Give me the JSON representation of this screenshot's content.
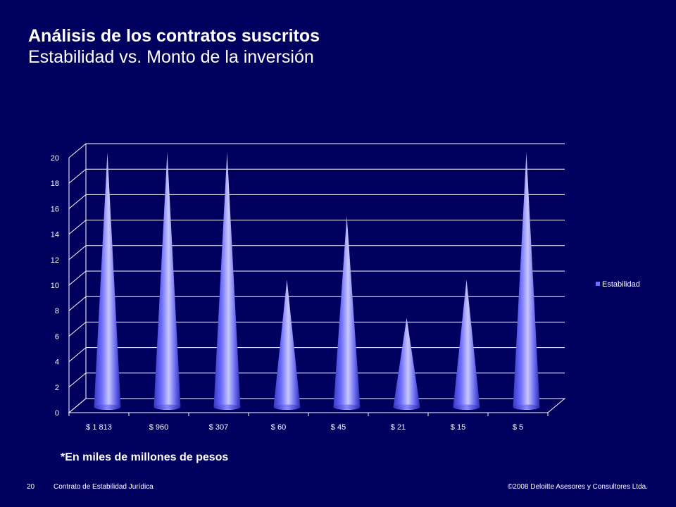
{
  "slide": {
    "title": "Análisis de los contratos suscritos",
    "subtitle": "Estabilidad vs. Monto de la inversión",
    "note": "*En miles de millones de pesos",
    "footer": {
      "page_number": "20",
      "document": "Contrato de Estabilidad Jurídica",
      "copyright": "©2008 Deloitte Asesores y Consultores Ltda."
    }
  },
  "chart_data": {
    "type": "bar",
    "shape": "cone-3d",
    "categories": [
      "$ 1 813",
      "$ 960",
      "$ 307",
      "$ 60",
      "$ 45",
      "$ 21",
      "$ 15",
      "$ 5"
    ],
    "series": [
      {
        "name": "Estabilidad",
        "values": [
          20,
          20,
          20,
          10,
          15,
          7,
          10,
          20
        ],
        "color": "#7070ff"
      }
    ],
    "ylim": [
      0,
      20
    ],
    "yticks": [
      0,
      2,
      4,
      6,
      8,
      10,
      12,
      14,
      16,
      18,
      20
    ],
    "grid": true,
    "legend": "right",
    "colors": {
      "background": "#00005e",
      "grid": "#ffffff",
      "cone_light": "#c8c8ff",
      "cone_mid": "#7070ff",
      "cone_dark": "#2a2ab0"
    }
  }
}
